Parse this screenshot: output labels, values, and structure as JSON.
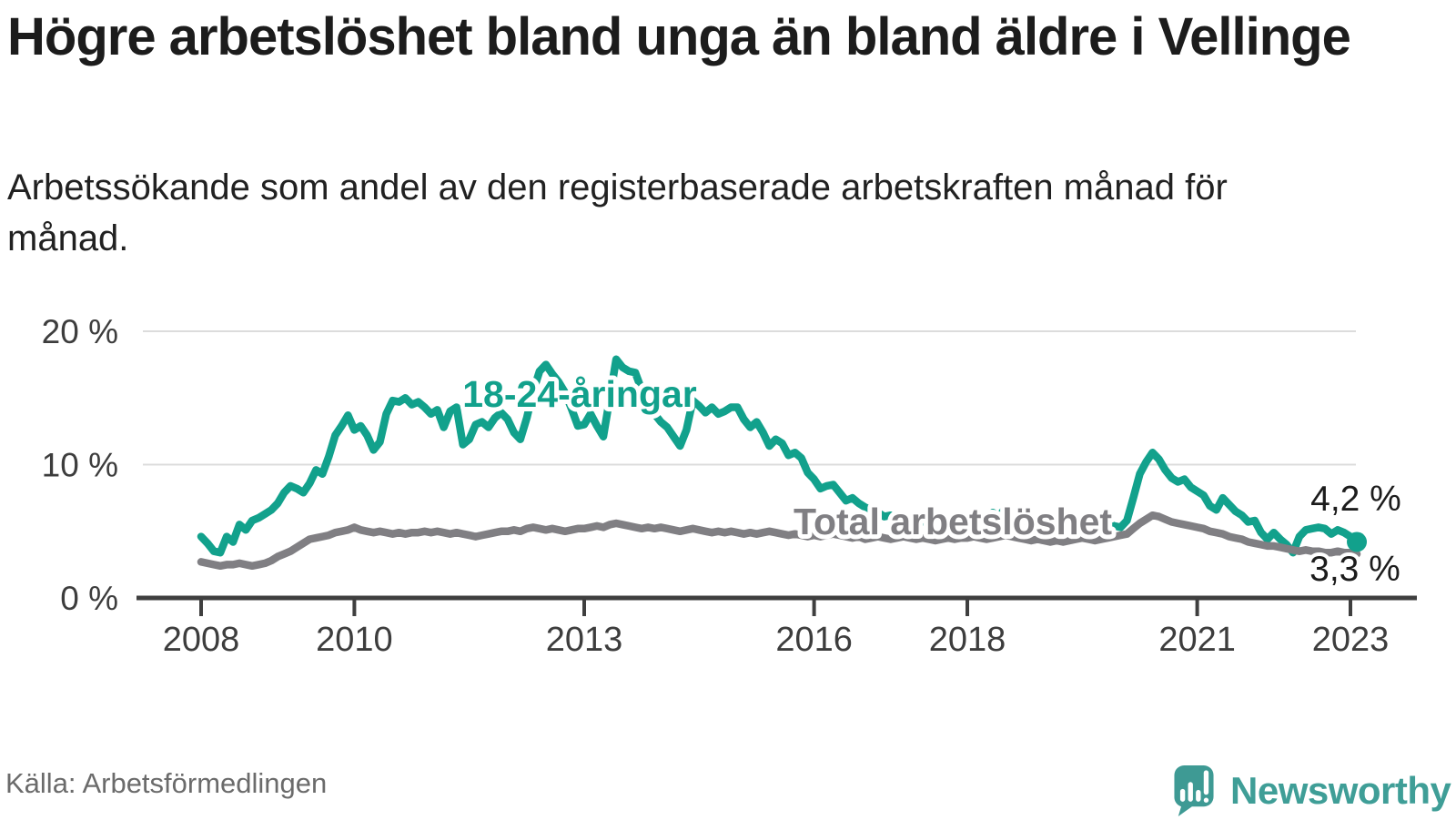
{
  "header": {
    "title": "Högre arbetslöshet bland unga än bland äldre i Vellinge",
    "subtitle": "Arbetssökande som andel av den registerbaserade arbetskraften månad för månad."
  },
  "chart_data": {
    "type": "line",
    "x_unit": "month",
    "x_start": "2008-01",
    "x_end": "2023-02",
    "ylim": [
      0,
      20
    ],
    "ytick_values": [
      0,
      10,
      20
    ],
    "ytick_labels": [
      "0 %",
      "10 %",
      "20 %"
    ],
    "xtick_years": [
      2008,
      2010,
      2013,
      2016,
      2018,
      2021,
      2023
    ],
    "grid": "horizontal",
    "legend_position": "inline-labels",
    "series": [
      {
        "name": "18-24-åringar",
        "color": "#12a18c",
        "values": [
          4.6,
          4.1,
          3.5,
          3.4,
          4.6,
          4.2,
          5.5,
          5.1,
          5.8,
          6.0,
          6.3,
          6.6,
          7.1,
          7.9,
          8.4,
          8.2,
          7.9,
          8.6,
          9.6,
          9.3,
          10.6,
          12.2,
          12.9,
          13.7,
          12.6,
          12.9,
          12.2,
          11.1,
          11.7,
          13.8,
          14.8,
          14.7,
          15.0,
          14.5,
          14.7,
          14.3,
          13.8,
          14.1,
          12.8,
          14.0,
          14.3,
          11.5,
          11.9,
          13.0,
          13.2,
          12.8,
          13.5,
          13.9,
          13.4,
          12.4,
          11.9,
          13.5,
          15.5,
          17.0,
          17.5,
          16.8,
          16.2,
          15.4,
          14.2,
          12.9,
          13.0,
          13.8,
          12.9,
          12.1,
          15.0,
          17.9,
          17.3,
          17.0,
          16.9,
          15.6,
          14.6,
          13.8,
          13.2,
          12.8,
          12.1,
          11.4,
          12.6,
          14.8,
          14.4,
          13.9,
          14.3,
          13.8,
          14.0,
          14.3,
          14.3,
          13.4,
          12.8,
          13.2,
          12.4,
          11.4,
          11.9,
          11.6,
          10.7,
          10.9,
          10.5,
          9.4,
          8.9,
          8.2,
          8.4,
          8.5,
          7.9,
          7.3,
          7.5,
          7.1,
          6.8,
          6.6,
          6.4,
          6.1,
          6.2,
          5.9,
          6.1,
          5.7,
          5.5,
          5.8,
          5.5,
          5.3,
          5.6,
          5.4,
          5.2,
          5.3,
          5.2,
          5.4,
          5.1,
          5.9,
          6.4,
          6.1,
          6.8,
          6.3,
          5.9,
          5.5,
          5.3,
          5.1,
          5.3,
          5.0,
          4.9,
          5.1,
          5.4,
          5.6,
          5.3,
          5.1,
          5.5,
          5.3,
          5.6,
          5.4,
          5.3,
          5.8,
          7.5,
          9.3,
          10.2,
          10.9,
          10.4,
          9.6,
          9.0,
          8.7,
          8.9,
          8.3,
          8.0,
          7.7,
          6.9,
          6.6,
          7.5,
          7.0,
          6.5,
          6.2,
          5.7,
          5.8,
          4.9,
          4.4,
          4.9,
          4.4,
          4.0,
          3.4,
          4.6,
          5.1,
          5.2,
          5.3,
          5.2,
          4.8,
          5.1,
          4.9,
          4.6,
          4.2
        ]
      },
      {
        "name": "Total arbetslöshet",
        "color": "#807f83",
        "values": [
          2.7,
          2.6,
          2.5,
          2.4,
          2.5,
          2.5,
          2.6,
          2.5,
          2.4,
          2.5,
          2.6,
          2.8,
          3.1,
          3.3,
          3.5,
          3.8,
          4.1,
          4.4,
          4.5,
          4.6,
          4.7,
          4.9,
          5.0,
          5.1,
          5.3,
          5.1,
          5.0,
          4.9,
          5.0,
          4.9,
          4.8,
          4.9,
          4.8,
          4.9,
          4.9,
          5.0,
          4.9,
          5.0,
          4.9,
          4.8,
          4.9,
          4.8,
          4.7,
          4.6,
          4.7,
          4.8,
          4.9,
          5.0,
          5.0,
          5.1,
          5.0,
          5.2,
          5.3,
          5.2,
          5.1,
          5.2,
          5.1,
          5.0,
          5.1,
          5.2,
          5.2,
          5.3,
          5.4,
          5.3,
          5.5,
          5.6,
          5.5,
          5.4,
          5.3,
          5.2,
          5.3,
          5.2,
          5.3,
          5.2,
          5.1,
          5.0,
          5.1,
          5.2,
          5.1,
          5.0,
          4.9,
          5.0,
          4.9,
          5.0,
          4.9,
          4.8,
          4.9,
          4.8,
          4.9,
          5.0,
          4.9,
          4.8,
          4.7,
          4.8,
          4.7,
          4.6,
          4.7,
          4.6,
          4.7,
          4.8,
          4.7,
          4.6,
          4.5,
          4.6,
          4.4,
          4.5,
          4.6,
          4.5,
          4.4,
          4.5,
          4.6,
          4.5,
          4.4,
          4.5,
          4.4,
          4.3,
          4.4,
          4.5,
          4.4,
          4.5,
          4.5,
          4.6,
          4.5,
          4.4,
          4.5,
          4.6,
          4.7,
          4.6,
          4.5,
          4.4,
          4.3,
          4.4,
          4.3,
          4.2,
          4.3,
          4.2,
          4.3,
          4.4,
          4.5,
          4.4,
          4.3,
          4.4,
          4.5,
          4.6,
          4.7,
          4.8,
          5.2,
          5.6,
          5.9,
          6.2,
          6.1,
          5.9,
          5.7,
          5.6,
          5.5,
          5.4,
          5.3,
          5.2,
          5.0,
          4.9,
          4.8,
          4.6,
          4.5,
          4.4,
          4.2,
          4.1,
          4.0,
          3.9,
          3.9,
          3.8,
          3.7,
          3.6,
          3.5,
          3.6,
          3.5,
          3.5,
          3.4,
          3.4,
          3.5,
          3.4,
          3.4,
          3.3
        ]
      }
    ],
    "end_labels": [
      "4,2 %",
      "3,3 %"
    ],
    "end_dot": {
      "series_index": 0,
      "value": 4.2
    }
  },
  "footer": {
    "source": "Källa: Arbetsförmedlingen",
    "brand": "Newsworthy"
  },
  "colors": {
    "young_line": "#12a18c",
    "total_line": "#807f83",
    "axis": "#3f3f3f",
    "grid": "#dcdcdc",
    "tick_text": "#3d3d3d",
    "end_label_text": "#1c1c1c",
    "logo_teal": "#3e9a94"
  }
}
